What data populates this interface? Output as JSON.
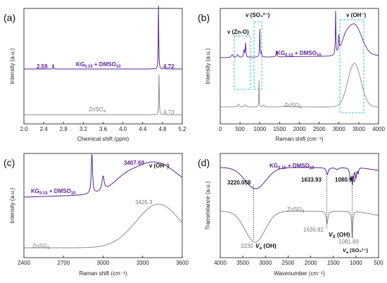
{
  "colors": {
    "purple": "#5b1f96",
    "gray": "#8a8a8a",
    "box": "#2ec4cc"
  },
  "chart_data": [
    {
      "panel": "(a)",
      "type": "line",
      "xlabel": "Chemical shift (ppm)",
      "ylabel": "Intensity (a.u.)",
      "xlim": [
        2.0,
        5.2
      ],
      "xticks": [
        "2.0",
        "2.4",
        "2.8",
        "3.2",
        "3.6",
        "4.0",
        "4.4",
        "4.8",
        "5.2"
      ],
      "series": [
        {
          "name": "KG0.15 + DMSO10",
          "name_main": "KG",
          "name_sub1": "0.15",
          "name_mid": " + DMSO",
          "name_sub2": "10",
          "color": "#5b1f96",
          "peaks": [
            {
              "x": 2.59,
              "label": "2.59"
            },
            {
              "x": 4.72,
              "label": "4.72"
            }
          ]
        },
        {
          "name": "ZnSO4",
          "name_main": "ZnSO",
          "name_sub1": "4",
          "color": "#8a8a8a",
          "peaks": [
            {
              "x": 4.73,
              "label": "4.73"
            }
          ]
        }
      ]
    },
    {
      "panel": "(b)",
      "type": "line",
      "xlabel": "Raman shift (cm⁻¹)",
      "ylabel": "Intensity (a.u.)",
      "xlim": [
        0,
        4000
      ],
      "xticks": [
        "0",
        "500",
        "1000",
        "1500",
        "2000",
        "2500",
        "3000",
        "3500",
        "4000"
      ],
      "annotations": [
        {
          "text": "v (Zn-O)",
          "x": 600
        },
        {
          "text": "v (SO₄²⁻)",
          "x": 980
        },
        {
          "text": "v (OH⁻)",
          "x": 3350
        }
      ],
      "series": [
        {
          "name": "KG0.15 + DMSO10",
          "name_main": "KG",
          "name_sub1": "0.15",
          "name_mid": " + DMSO",
          "name_sub2": "10",
          "color": "#5b1f96"
        },
        {
          "name": "ZnSO4",
          "name_main": "ZnSO",
          "name_sub1": "4",
          "color": "#8a8a8a"
        }
      ]
    },
    {
      "panel": "(c)",
      "type": "line",
      "xlabel": "Raman shift (cm⁻¹)",
      "ylabel": "Intensity (a.u.)",
      "xlim": [
        2400,
        3600
      ],
      "xticks": [
        "2400",
        "2700",
        "3000",
        "3300",
        "3600"
      ],
      "annotations": [
        {
          "text": "v (OH⁻)"
        }
      ],
      "series": [
        {
          "name": "KG0.15 + DMSO10",
          "name_main": "KG",
          "name_sub1": "0.15",
          "name_mid": " + DMSO",
          "name_sub2": "10",
          "color": "#5b1f96",
          "peaks": [
            {
              "x": 3407.69,
              "label": "3407.69"
            }
          ]
        },
        {
          "name": "ZnSO4",
          "name_main": "ZnSO",
          "name_sub1": "4",
          "color": "#8a8a8a",
          "peaks": [
            {
              "x": 3426.3,
              "label": "3426.3"
            }
          ]
        }
      ]
    },
    {
      "panel": "(d)",
      "type": "line",
      "xlabel": "Wavenumber (cm⁻¹)",
      "ylabel": "Transmitance (a.u.)",
      "xlim": [
        4000,
        500
      ],
      "xticks": [
        "4000",
        "3500",
        "3000",
        "2500",
        "2000",
        "1500",
        "1000",
        "500"
      ],
      "annotations": [
        {
          "text": "Vₐ (OH)",
          "main": "V",
          "sub": "a",
          "rest": " (OH)"
        },
        {
          "text": "Vₛ (OH)",
          "main": "V",
          "sub": "S",
          "rest": " (OH)"
        },
        {
          "text": "Vₐ (SO₄²⁻)",
          "main": "V",
          "sub": "a",
          "rest": " (SO₄²⁻)"
        }
      ],
      "series": [
        {
          "name": "KG0.15 + DMSO10",
          "name_main": "KG",
          "name_sub1": "0.15",
          "name_mid": " + DMSO",
          "name_sub2": "10",
          "color": "#5b1f96",
          "peaks": [
            {
              "x": 3220.058,
              "label": "3220.058"
            },
            {
              "x": 1633.93,
              "label": "1633.93"
            },
            {
              "x": 1080.95,
              "label": "1080.95"
            }
          ]
        },
        {
          "name": "ZnSO4",
          "name_main": "ZnSO",
          "name_sub1": "4",
          "color": "#8a8a8a",
          "peaks": [
            {
              "x": 3230,
              "label": "3230"
            },
            {
              "x": 1636.82,
              "label": "1636.82"
            },
            {
              "x": 1081.89,
              "label": "1081.89"
            }
          ]
        }
      ]
    }
  ]
}
